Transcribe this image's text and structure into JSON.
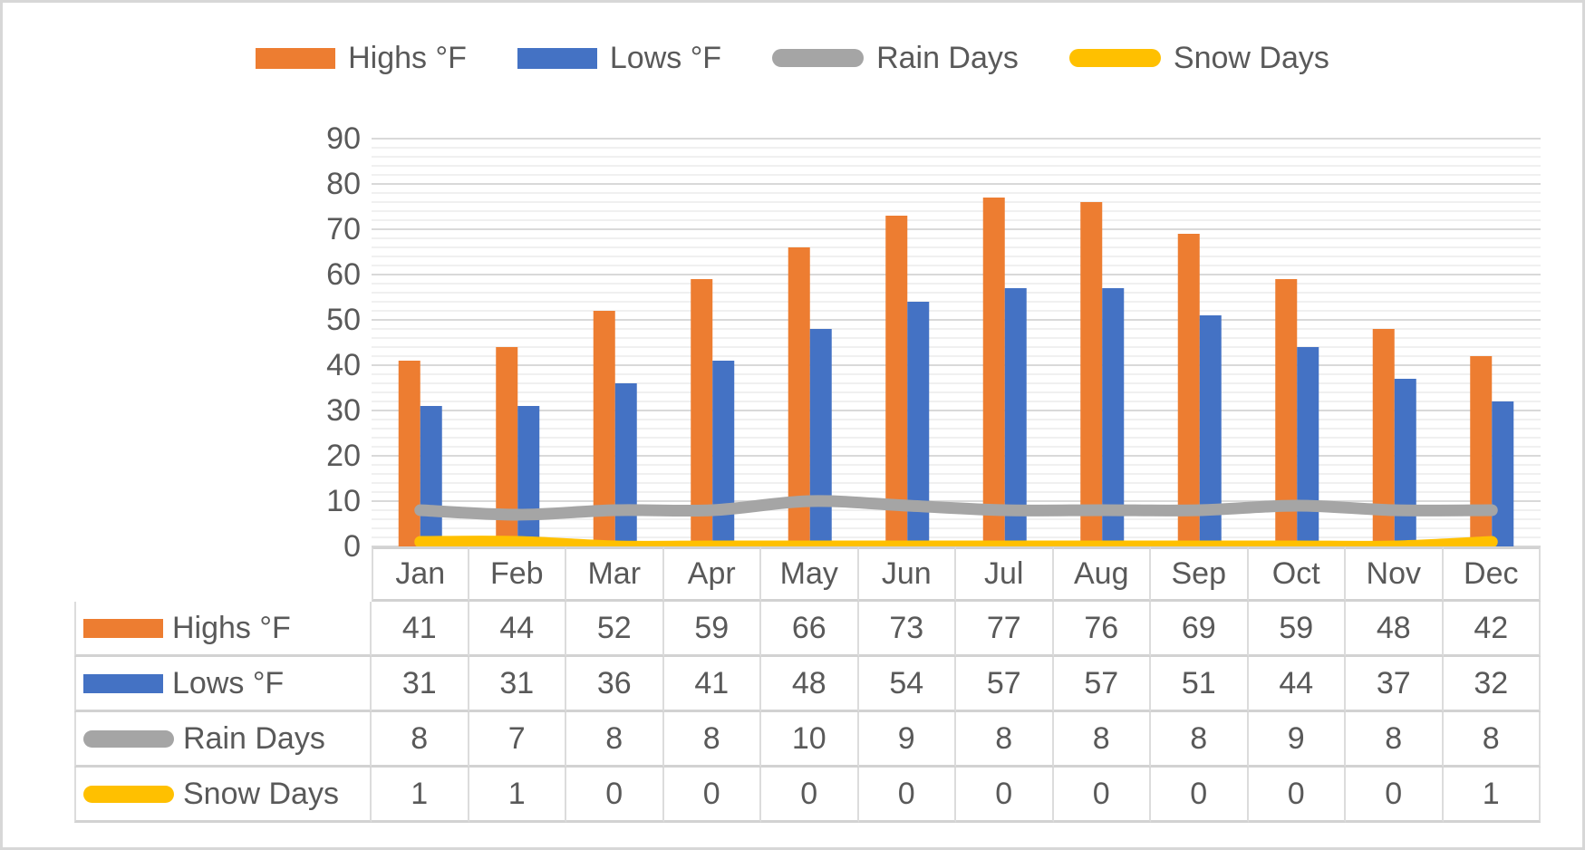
{
  "window": {
    "background": "#ffffff",
    "frame_border_color": "#d7d7d7"
  },
  "legend": {
    "position": "top",
    "items": [
      {
        "label": "Highs °F",
        "swatch": "bar",
        "color": "#ED7D31"
      },
      {
        "label": "Lows °F",
        "swatch": "bar",
        "color": "#4472C4"
      },
      {
        "label": "Rain Days",
        "swatch": "line",
        "color": "#A5A5A5"
      },
      {
        "label": "Snow Days",
        "swatch": "line",
        "color": "#FFC000"
      }
    ]
  },
  "axis": {
    "y_tick_labels": [
      "0",
      "10",
      "20",
      "30",
      "40",
      "50",
      "60",
      "70",
      "80",
      "90"
    ]
  },
  "chart_data": {
    "type": "bar",
    "title": "",
    "xlabel": "",
    "ylabel": "",
    "categories": [
      "Jan",
      "Feb",
      "Mar",
      "Apr",
      "May",
      "Jun",
      "Jul",
      "Aug",
      "Sep",
      "Oct",
      "Nov",
      "Dec"
    ],
    "series": [
      {
        "name": "Highs °F",
        "type": "bar",
        "color": "#ED7D31",
        "values": [
          41,
          44,
          52,
          59,
          66,
          73,
          77,
          76,
          69,
          59,
          48,
          42
        ]
      },
      {
        "name": "Lows °F",
        "type": "bar",
        "color": "#4472C4",
        "values": [
          31,
          31,
          36,
          41,
          48,
          54,
          57,
          57,
          51,
          44,
          37,
          32
        ]
      },
      {
        "name": "Rain Days",
        "type": "line",
        "color": "#A5A5A5",
        "values": [
          8,
          7,
          8,
          8,
          10,
          9,
          8,
          8,
          8,
          9,
          8,
          8
        ]
      },
      {
        "name": "Snow Days",
        "type": "line",
        "color": "#FFC000",
        "values": [
          1,
          1,
          0,
          0,
          0,
          0,
          0,
          0,
          0,
          0,
          0,
          1
        ]
      }
    ],
    "ylim": [
      0,
      90
    ],
    "y_tick_step": 10,
    "y_minor_step": 2,
    "grid": true,
    "major_grid_color": "#d9d9d9",
    "minor_grid_color": "#f0f0f0",
    "legend_position": "top",
    "data_table_shown": true
  }
}
